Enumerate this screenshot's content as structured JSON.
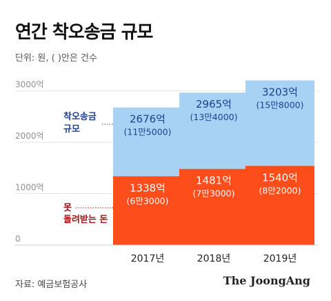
{
  "title": "연간 착오송금 규모",
  "subtitle": "단위: 원, ( )안은 건수",
  "source": "자료: 예금보험공사",
  "publisher": "The JoongAng",
  "colors": {
    "total": "#a7d2f4",
    "unreturned": "#fd4d1b",
    "total_label": "#1f3f8f",
    "unreturned_label": "#a01010",
    "axis": "#8f8f8f"
  },
  "chart_data": {
    "type": "bar",
    "categories": [
      "2017년",
      "2018년",
      "2019년"
    ],
    "series": [
      {
        "name": "착오송금 규모",
        "values": [
          2676,
          2965,
          3203
        ],
        "labels": [
          "2676억",
          "2965억",
          "3203억"
        ],
        "counts": [
          "(11만5000)",
          "(13만4000)",
          "(15만8000)"
        ]
      },
      {
        "name": "못 돌려받는 돈",
        "values": [
          1338,
          1481,
          1540
        ],
        "labels": [
          "1338억",
          "1481억",
          "1540억"
        ],
        "counts": [
          "(6만3000)",
          "(7만3000)",
          "(8만2000)"
        ]
      }
    ],
    "yticks": [
      {
        "value": 0,
        "label": "0"
      },
      {
        "value": 1000,
        "label": "1000억"
      },
      {
        "value": 2000,
        "label": "2000억"
      },
      {
        "value": 3000,
        "label": "3000억"
      }
    ],
    "ylim": [
      0,
      3250
    ],
    "legend_labels": {
      "total": [
        "착오송금",
        "규모"
      ],
      "unreturned": [
        "못",
        "돌려받는 돈"
      ]
    }
  }
}
